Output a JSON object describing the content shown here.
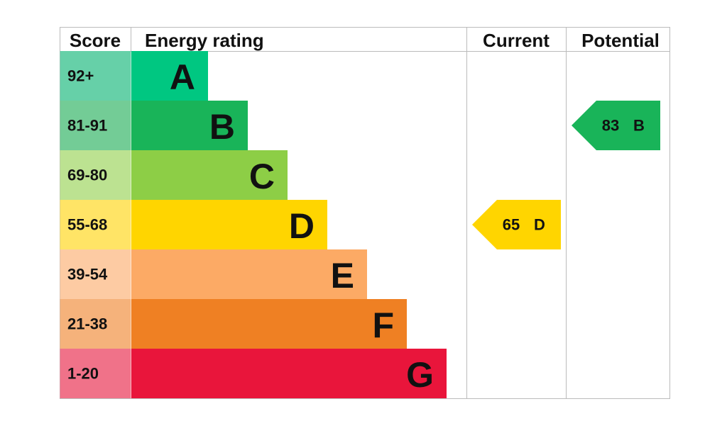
{
  "header": {
    "score": "Score",
    "energy_rating": "Energy rating",
    "current": "Current",
    "potential": "Potential"
  },
  "bands": [
    {
      "score": "92+",
      "rating": "A",
      "color": "#00c781",
      "score_color": "#66d0a8"
    },
    {
      "score": "81-91",
      "rating": "B",
      "color": "#19b459",
      "score_color": "#73cc96"
    },
    {
      "score": "69-80",
      "rating": "C",
      "color": "#8dce46",
      "score_color": "#bce291"
    },
    {
      "score": "55-68",
      "rating": "D",
      "color": "#ffd500",
      "score_color": "#ffe466"
    },
    {
      "score": "39-54",
      "rating": "E",
      "color": "#fcaa65",
      "score_color": "#fdcba3"
    },
    {
      "score": "21-38",
      "rating": "F",
      "color": "#ef8023",
      "score_color": "#f5b27b"
    },
    {
      "score": "1-20",
      "rating": "G",
      "color": "#e9153b",
      "score_color": "#f07289"
    }
  ],
  "current": {
    "score": 65,
    "rating": "D"
  },
  "potential": {
    "score": 83,
    "rating": "B"
  }
}
